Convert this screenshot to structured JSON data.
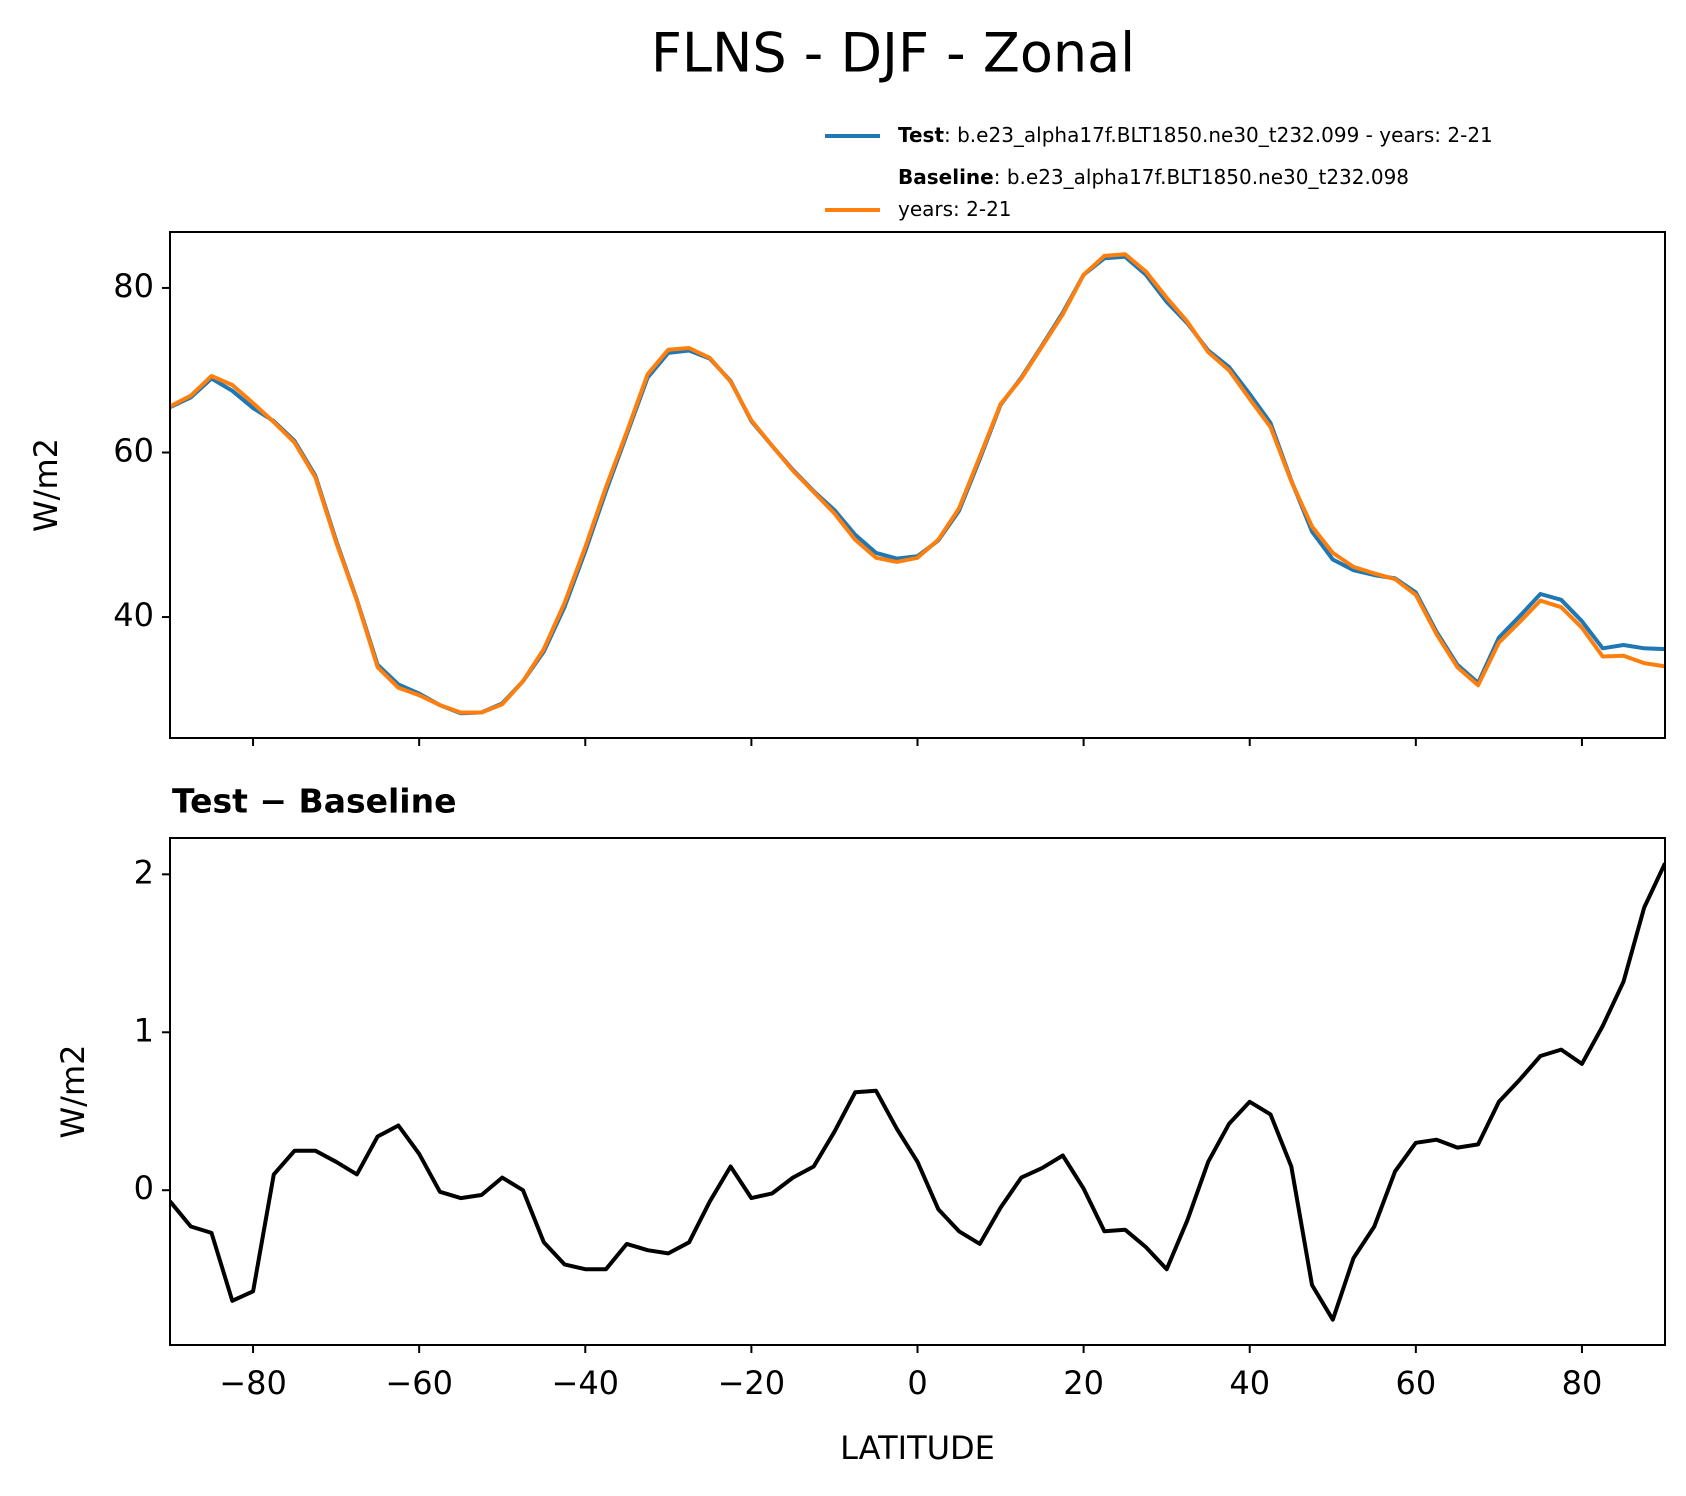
{
  "title": "FLNS - DJF - Zonal",
  "chart_data": [
    {
      "type": "line",
      "ylabel": "W/m2",
      "x": [
        -90,
        -87.5,
        -85,
        -82.5,
        -80,
        -77.5,
        -75,
        -72.5,
        -70,
        -67.5,
        -65,
        -62.5,
        -60,
        -57.5,
        -55,
        -52.5,
        -50,
        -47.5,
        -45,
        -42.5,
        -40,
        -37.5,
        -35,
        -32.5,
        -30,
        -27.5,
        -25,
        -22.5,
        -20,
        -17.5,
        -15,
        -12.5,
        -10,
        -7.5,
        -5,
        -2.5,
        0,
        2.5,
        5,
        7.5,
        10,
        12.5,
        15,
        17.5,
        20,
        22.5,
        25,
        27.5,
        30,
        32.5,
        35,
        37.5,
        40,
        42.5,
        45,
        47.5,
        50,
        52.5,
        55,
        57.5,
        60,
        62.5,
        65,
        67.5,
        70,
        72.5,
        75,
        77.5,
        80,
        82.5,
        85,
        87.5,
        90
      ],
      "series": [
        {
          "name": "Test",
          "description": [
            ": b.e23_alpha17f.BLT1850.ne30_t232.099 - years: 2-21"
          ],
          "color": "#1f77b4",
          "values": [
            65.5,
            66.7,
            69.0,
            67.5,
            65.4,
            63.8,
            61.4,
            57.2,
            49.3,
            42.1,
            34.2,
            31.8,
            30.7,
            29.3,
            28.3,
            28.4,
            29.5,
            32.2,
            35.8,
            41.2,
            48.0,
            55.3,
            62.2,
            69.1,
            72.1,
            72.4,
            71.4,
            68.7,
            63.8,
            60.8,
            57.9,
            55.3,
            53.0,
            50.0,
            47.8,
            47.1,
            47.4,
            49.3,
            52.9,
            59.2,
            65.8,
            69.1,
            73.0,
            77.0,
            81.6,
            83.6,
            83.8,
            81.6,
            78.3,
            75.7,
            72.4,
            70.4,
            67.1,
            63.6,
            56.6,
            50.4,
            47.0,
            45.7,
            45.1,
            44.7,
            43.0,
            38.2,
            34.2,
            32.0,
            37.5,
            40.1,
            42.8,
            42.1,
            39.5,
            36.2,
            36.6,
            36.2,
            36.1
          ]
        },
        {
          "name": "Baseline",
          "description": [
            ": b.e23_alpha17f.BLT1850.ne30_t232.098",
            "years: 2-21"
          ],
          "color": "#ff7f0e",
          "values": [
            65.6,
            66.9,
            69.3,
            68.2,
            66.0,
            63.7,
            61.2,
            57.0,
            49.1,
            42.0,
            33.9,
            31.4,
            30.5,
            29.3,
            28.4,
            28.4,
            29.4,
            32.2,
            36.1,
            41.7,
            48.5,
            55.8,
            62.5,
            69.5,
            72.5,
            72.7,
            71.5,
            68.6,
            63.9,
            60.8,
            57.8,
            55.2,
            52.6,
            49.4,
            47.2,
            46.7,
            47.2,
            49.4,
            53.2,
            59.5,
            65.9,
            69.0,
            72.9,
            76.8,
            81.6,
            83.9,
            84.1,
            82.0,
            78.8,
            75.9,
            72.2,
            70.0,
            66.5,
            63.1,
            56.5,
            51.0,
            47.8,
            46.1,
            45.3,
            44.6,
            42.7,
            37.9,
            33.9,
            31.7,
            36.9,
            39.4,
            42.0,
            41.2,
            38.7,
            35.2,
            35.3,
            34.4,
            34.0
          ]
        }
      ],
      "xlim": [
        -90,
        90
      ],
      "xticks": [
        -80,
        -60,
        -40,
        -20,
        0,
        20,
        40,
        60,
        80
      ],
      "ylim": [
        25.3,
        86.8
      ],
      "yticks": [
        40,
        60,
        80
      ]
    },
    {
      "type": "line",
      "title": "Test − Baseline",
      "xlabel": "LATITUDE",
      "ylabel": "W/m2",
      "x": [
        -90,
        -87.5,
        -85,
        -82.5,
        -80,
        -77.5,
        -75,
        -72.5,
        -70,
        -67.5,
        -65,
        -62.5,
        -60,
        -57.5,
        -55,
        -52.5,
        -50,
        -47.5,
        -45,
        -42.5,
        -40,
        -37.5,
        -35,
        -32.5,
        -30,
        -27.5,
        -25,
        -22.5,
        -20,
        -17.5,
        -15,
        -12.5,
        -10,
        -7.5,
        -5,
        -2.5,
        0,
        2.5,
        5,
        7.5,
        10,
        12.5,
        15,
        17.5,
        20,
        22.5,
        25,
        27.5,
        30,
        32.5,
        35,
        37.5,
        40,
        42.5,
        45,
        47.5,
        50,
        52.5,
        55,
        57.5,
        60,
        62.5,
        65,
        67.5,
        70,
        72.5,
        75,
        77.5,
        80,
        82.5,
        85,
        87.5,
        90
      ],
      "series": [
        {
          "color": "#000000",
          "values": [
            -0.07,
            -0.23,
            -0.27,
            -0.7,
            -0.64,
            0.1,
            0.25,
            0.25,
            0.18,
            0.1,
            0.34,
            0.41,
            0.23,
            -0.01,
            -0.05,
            -0.03,
            0.08,
            0.0,
            -0.33,
            -0.47,
            -0.5,
            -0.5,
            -0.34,
            -0.38,
            -0.4,
            -0.33,
            -0.07,
            0.15,
            -0.05,
            -0.02,
            0.08,
            0.15,
            0.37,
            0.62,
            0.63,
            0.39,
            0.18,
            -0.12,
            -0.26,
            -0.34,
            -0.11,
            0.08,
            0.14,
            0.22,
            0.01,
            -0.26,
            -0.25,
            -0.36,
            -0.5,
            -0.19,
            0.18,
            0.42,
            0.56,
            0.48,
            0.15,
            -0.6,
            -0.82,
            -0.43,
            -0.23,
            0.12,
            0.3,
            0.32,
            0.27,
            0.29,
            0.56,
            0.7,
            0.85,
            0.89,
            0.8,
            1.04,
            1.32,
            1.79,
            2.07
          ]
        }
      ],
      "xlim": [
        -90,
        90
      ],
      "xticks": [
        {
          "value": -80,
          "label": "−80"
        },
        {
          "value": -60,
          "label": "−60"
        },
        {
          "value": -40,
          "label": "−40"
        },
        {
          "value": -20,
          "label": "−20"
        },
        0,
        20,
        40,
        60,
        80
      ],
      "ylim": [
        -0.98,
        2.23
      ],
      "yticks": [
        0,
        1,
        2
      ]
    }
  ]
}
